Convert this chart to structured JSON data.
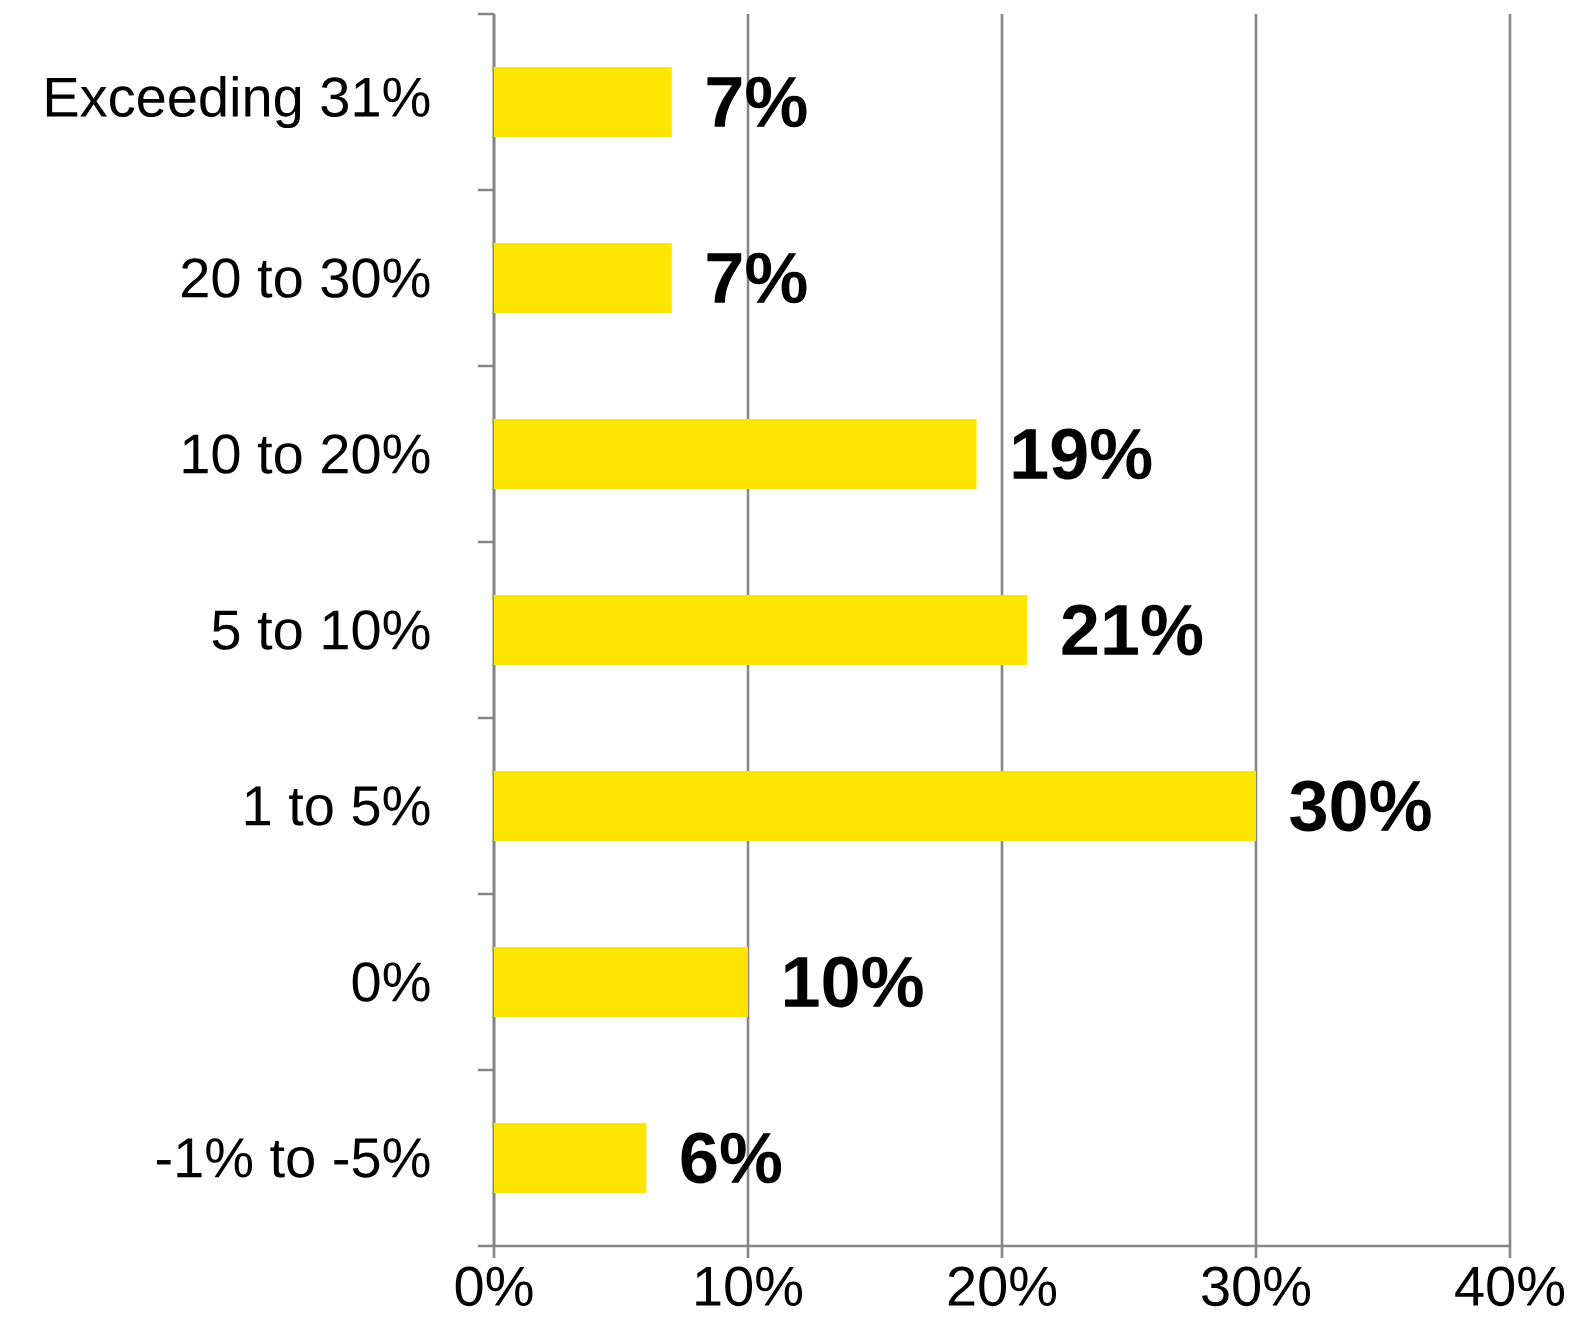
{
  "chart_data": {
    "type": "bar",
    "orientation": "horizontal",
    "categories": [
      "Exceeding 31%",
      "20 to 30%",
      "10 to 20%",
      "5 to 10%",
      "1 to 5%",
      "0%",
      "-1% to -5%"
    ],
    "values": [
      7,
      7,
      19,
      21,
      30,
      10,
      6
    ],
    "value_labels": [
      "7%",
      "7%",
      "19%",
      "21%",
      "30%",
      "10%",
      "6%"
    ],
    "color": "#ffe600",
    "xlim": [
      0,
      40
    ],
    "xticks": [
      {
        "value": 0,
        "label": "0%"
      },
      {
        "value": 10,
        "label": "10%"
      },
      {
        "value": 20,
        "label": "20%"
      },
      {
        "value": 30,
        "label": "30%"
      },
      {
        "value": 40,
        "label": "40%"
      }
    ],
    "grid": "x"
  }
}
